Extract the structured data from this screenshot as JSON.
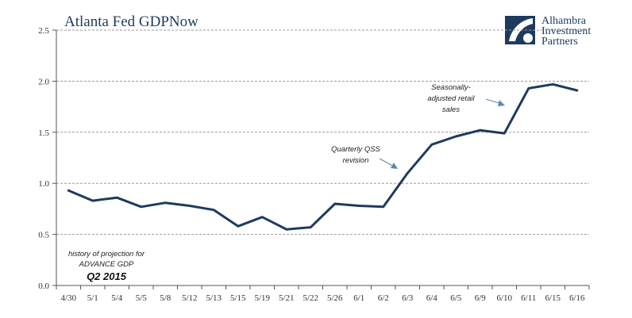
{
  "chart_data": {
    "type": "line",
    "title": "Atlanta Fed GDPNow",
    "xlabel": "",
    "ylabel": "",
    "categories": [
      "4/30",
      "5/1",
      "5/4",
      "5/5",
      "5/8",
      "5/12",
      "5/13",
      "5/15",
      "5/19",
      "5/21",
      "5/22",
      "5/26",
      "6/1",
      "6/2",
      "6/3",
      "6/4",
      "6/5",
      "6/9",
      "6/10",
      "6/11",
      "6/15",
      "6/16"
    ],
    "series": [
      {
        "values": [
          0.93,
          0.83,
          0.86,
          0.77,
          0.81,
          0.78,
          0.74,
          0.58,
          0.67,
          0.55,
          0.57,
          0.8,
          0.78,
          0.77,
          1.1,
          1.38,
          1.46,
          1.52,
          1.49,
          1.93,
          1.97,
          1.91
        ]
      }
    ],
    "ylim": [
      0,
      2.5
    ],
    "yticks": [
      "0.0",
      "0.5",
      "1.0",
      "1.5",
      "2.0",
      "2.5"
    ],
    "grid": "horizontal dashed",
    "line_color": "#1f3a5f",
    "annotations": {
      "qss": [
        "Quarterly QSS",
        "revision"
      ],
      "retail": [
        "Seasonally-",
        "adjusted retail",
        "sales"
      ],
      "projection": [
        "history of projection for",
        "ADVANCE GDP"
      ],
      "quarter": "Q2 2015"
    }
  },
  "logo": {
    "lines": [
      "Alhambra",
      "Investment",
      "Partners"
    ],
    "color": "#1f3a5f"
  }
}
